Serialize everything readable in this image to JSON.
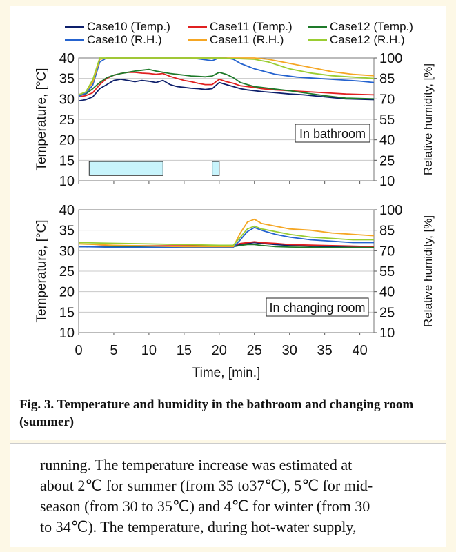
{
  "caption": "Fig. 3. Temperature and humidity in the bathroom and changing room (summer)",
  "body_text": [
    "running. The temperature increase was estimated at",
    "about 2℃ for summer (from 35 to37℃), 5℃ for mid-",
    "season (from 30 to 35℃) and 4℃ for winter (from 30",
    "to 34℃). The temperature, during hot-water supply,"
  ],
  "chart_data": [
    {
      "type": "line",
      "panel_label": "In bathroom",
      "xlabel": "Time, [min.]",
      "ylabel": "Temperature, [°C]",
      "y2label": "Relative humidity, [%]",
      "xlim": [
        0,
        42
      ],
      "ylim": [
        10,
        40
      ],
      "y2lim": [
        10,
        100
      ],
      "xticks": [
        "0",
        "5",
        "10",
        "15",
        "20",
        "25",
        "30",
        "35",
        "40"
      ],
      "yticks": [
        "40",
        "35",
        "30",
        "25",
        "20",
        "15",
        "10"
      ],
      "y2ticks": [
        "100",
        "85",
        "70",
        "55",
        "40",
        "25",
        "10"
      ],
      "grid": true,
      "legend_position": "top",
      "markers": [
        {
          "x_start": 1.5,
          "x_end": 12
        },
        {
          "x_start": 19,
          "x_end": 20
        }
      ],
      "series": [
        {
          "name": "Case10 (Temp.)",
          "axis": "left",
          "color": "#0d1f6b",
          "x": [
            0,
            1,
            2,
            3,
            4,
            5,
            6,
            7,
            8,
            9,
            10,
            11,
            12,
            13,
            14,
            15,
            16,
            17,
            18,
            19,
            20,
            21,
            22,
            23,
            24,
            25,
            26,
            28,
            30,
            32,
            35,
            38,
            42
          ],
          "y": [
            29.5,
            29.8,
            30.5,
            32.5,
            33.5,
            34.5,
            34.8,
            34.5,
            34.2,
            34.5,
            34.3,
            34,
            34.5,
            33.5,
            33,
            32.8,
            32.6,
            32.5,
            32.3,
            32.5,
            34,
            33.5,
            33,
            32.5,
            32.2,
            32,
            31.8,
            31.5,
            31.2,
            31,
            30.5,
            30,
            29.8
          ]
        },
        {
          "name": "Case11 (Temp.)",
          "axis": "left",
          "color": "#e02020",
          "x": [
            0,
            1,
            2,
            3,
            4,
            5,
            6,
            7,
            8,
            9,
            10,
            11,
            12,
            13,
            14,
            15,
            16,
            17,
            18,
            19,
            20,
            21,
            22,
            23,
            24,
            25,
            26,
            28,
            30,
            32,
            35,
            38,
            42
          ],
          "y": [
            30.5,
            30.8,
            31.5,
            33.5,
            35,
            35.8,
            36.2,
            36.5,
            36.5,
            36.3,
            36.2,
            36,
            36.2,
            35.5,
            35,
            34.5,
            34.2,
            33.8,
            33.5,
            33.5,
            34.8,
            34.2,
            33.8,
            33.2,
            33,
            32.8,
            32.5,
            32.2,
            32,
            31.8,
            31.5,
            31.2,
            31
          ]
        },
        {
          "name": "Case12 (Temp.)",
          "axis": "left",
          "color": "#1e7a2a",
          "x": [
            0,
            1,
            2,
            3,
            4,
            5,
            6,
            7,
            8,
            9,
            10,
            11,
            12,
            13,
            14,
            15,
            16,
            17,
            18,
            19,
            20,
            21,
            22,
            23,
            24,
            25,
            26,
            28,
            30,
            32,
            35,
            38,
            42
          ],
          "y": [
            31,
            31.2,
            32.5,
            34,
            35.2,
            35.8,
            36.2,
            36.5,
            36.8,
            37,
            37.2,
            36.8,
            36.5,
            36.2,
            36,
            35.8,
            35.6,
            35.5,
            35.4,
            35.6,
            36.5,
            36,
            35.2,
            34,
            33.5,
            33,
            32.8,
            32.4,
            32,
            31.5,
            30.8,
            30.2,
            30
          ]
        },
        {
          "name": "Case10 (R.H.)",
          "axis": "right",
          "color": "#2563cf",
          "x": [
            0,
            1,
            2,
            3,
            4,
            5,
            8,
            12,
            16,
            19,
            20,
            21,
            22,
            23,
            25,
            28,
            31,
            34,
            37,
            40,
            42
          ],
          "y": [
            72,
            74,
            80,
            97,
            100,
            100,
            100,
            100,
            100,
            98,
            100,
            100,
            99,
            96,
            92,
            88,
            86,
            85,
            84,
            83,
            82
          ]
        },
        {
          "name": "Case11 (R.H.)",
          "axis": "right",
          "color": "#f5a623",
          "x": [
            0,
            1,
            2,
            3,
            4,
            5,
            10,
            15,
            20,
            25,
            27,
            30,
            33,
            36,
            39,
            42
          ],
          "y": [
            73,
            75,
            82,
            99,
            100,
            100,
            100,
            100,
            100,
            100,
            99,
            96,
            93,
            90,
            88,
            87
          ]
        },
        {
          "name": "Case12 (R.H.)",
          "axis": "right",
          "color": "#9acd32",
          "x": [
            0,
            1,
            2,
            3,
            4,
            5,
            10,
            15,
            20,
            25,
            27,
            30,
            33,
            36,
            39,
            42
          ],
          "y": [
            73,
            75,
            84,
            100,
            100,
            100,
            100,
            100,
            100,
            99,
            97,
            92,
            89,
            87,
            86,
            85
          ]
        }
      ]
    },
    {
      "type": "line",
      "panel_label": "In changing room",
      "xlabel": "Time, [min.]",
      "ylabel": "Temperature, [°C]",
      "y2label": "Relative humidity, [%]",
      "xlim": [
        0,
        42
      ],
      "ylim": [
        10,
        40
      ],
      "y2lim": [
        10,
        100
      ],
      "xticks": [
        "0",
        "5",
        "10",
        "15",
        "20",
        "25",
        "30",
        "35",
        "40"
      ],
      "yticks": [
        "40",
        "35",
        "30",
        "25",
        "20",
        "15",
        "10"
      ],
      "y2ticks": [
        "100",
        "85",
        "70",
        "55",
        "40",
        "25",
        "10"
      ],
      "grid": true,
      "series": [
        {
          "name": "Case10 (Temp.)",
          "axis": "left",
          "color": "#0d1f6b",
          "x": [
            0,
            5,
            10,
            15,
            20,
            22,
            23,
            24,
            25,
            26,
            28,
            30,
            35,
            42
          ],
          "y": [
            31,
            31,
            31,
            31,
            31,
            31.2,
            31.5,
            31.8,
            32,
            31.8,
            31.5,
            31.3,
            31,
            30.8
          ]
        },
        {
          "name": "Case11 (Temp.)",
          "axis": "left",
          "color": "#e02020",
          "x": [
            0,
            5,
            10,
            15,
            20,
            22,
            23,
            24,
            25,
            26,
            28,
            30,
            35,
            42
          ],
          "y": [
            31,
            31.2,
            31.2,
            31.2,
            31.2,
            31.3,
            31.8,
            32,
            32.2,
            32,
            31.8,
            31.5,
            31.3,
            31
          ]
        },
        {
          "name": "Case12 (Temp.)",
          "axis": "left",
          "color": "#1e7a2a",
          "x": [
            0,
            5,
            10,
            15,
            20,
            22,
            23,
            24,
            25,
            26,
            28,
            30,
            35,
            42
          ],
          "y": [
            31,
            31,
            31,
            30.9,
            30.9,
            31,
            31.3,
            31.5,
            31.5,
            31.3,
            31,
            30.9,
            30.8,
            30.8
          ]
        },
        {
          "name": "Case10 (R.H.)",
          "axis": "right",
          "color": "#2563cf",
          "x": [
            0,
            5,
            10,
            15,
            20,
            22,
            23,
            24,
            25,
            26,
            28,
            30,
            33,
            36,
            39,
            42
          ],
          "y": [
            73,
            72.5,
            72.5,
            72.5,
            72.5,
            72.5,
            78,
            84,
            87,
            85,
            82,
            80,
            78,
            77,
            76,
            76
          ]
        },
        {
          "name": "Case11 (R.H.)",
          "axis": "right",
          "color": "#f5a623",
          "x": [
            0,
            5,
            10,
            15,
            20,
            22,
            23,
            24,
            25,
            26,
            28,
            30,
            33,
            36,
            39,
            42
          ],
          "y": [
            75,
            74,
            73.5,
            73,
            73,
            73,
            83,
            91,
            93,
            90,
            88,
            86,
            85,
            83,
            82,
            81
          ]
        },
        {
          "name": "Case12 (R.H.)",
          "axis": "right",
          "color": "#9acd32",
          "x": [
            0,
            5,
            10,
            15,
            20,
            22,
            23,
            24,
            25,
            26,
            28,
            30,
            33,
            36,
            39,
            42
          ],
          "y": [
            76,
            75.5,
            75,
            74.5,
            74,
            74,
            80,
            86,
            88,
            86,
            84,
            82,
            80,
            79,
            78,
            78
          ]
        }
      ]
    }
  ]
}
